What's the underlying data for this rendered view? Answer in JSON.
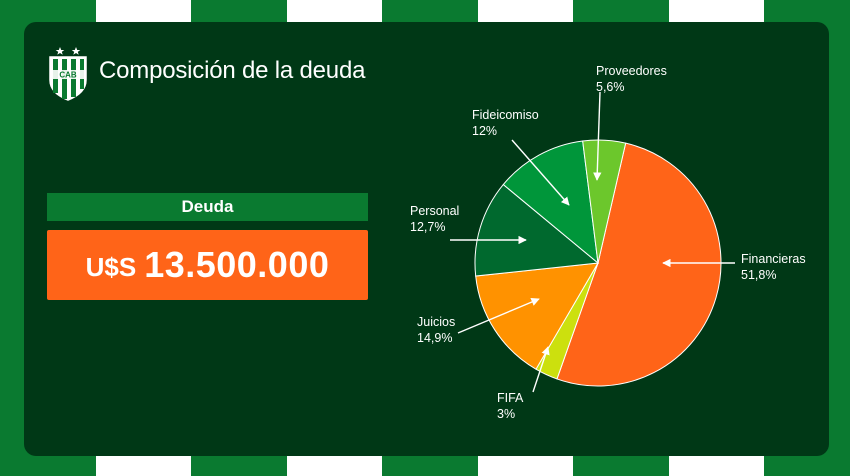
{
  "header": {
    "title": "Composición de la deuda",
    "crest_letters": "CAB"
  },
  "debt": {
    "label": "Deuda",
    "currency": "U$S",
    "amount": "13.500.000"
  },
  "colors": {
    "background": "#003816",
    "stripe_green": "#0a7a30",
    "stripe_white": "#ffffff",
    "accent_orange": "#ff6418"
  },
  "chart_data": {
    "type": "pie",
    "title": "",
    "slices": [
      {
        "label": "Financieras",
        "percent_label": "51,8%",
        "value": 51.8,
        "color": "#ff6418"
      },
      {
        "label": "FIFA",
        "percent_label": "3%",
        "value": 3.0,
        "color": "#cce00e"
      },
      {
        "label": "Juicios",
        "percent_label": "14,9%",
        "value": 14.9,
        "color": "#ff9200"
      },
      {
        "label": "Personal",
        "percent_label": "12,7%",
        "value": 12.7,
        "color": "#00692e"
      },
      {
        "label": "Fideicomiso",
        "percent_label": "12%",
        "value": 12.0,
        "color": "#00963a"
      },
      {
        "label": "Proveedores",
        "percent_label": "5,6%",
        "value": 5.6,
        "color": "#6cc72c"
      }
    ]
  }
}
